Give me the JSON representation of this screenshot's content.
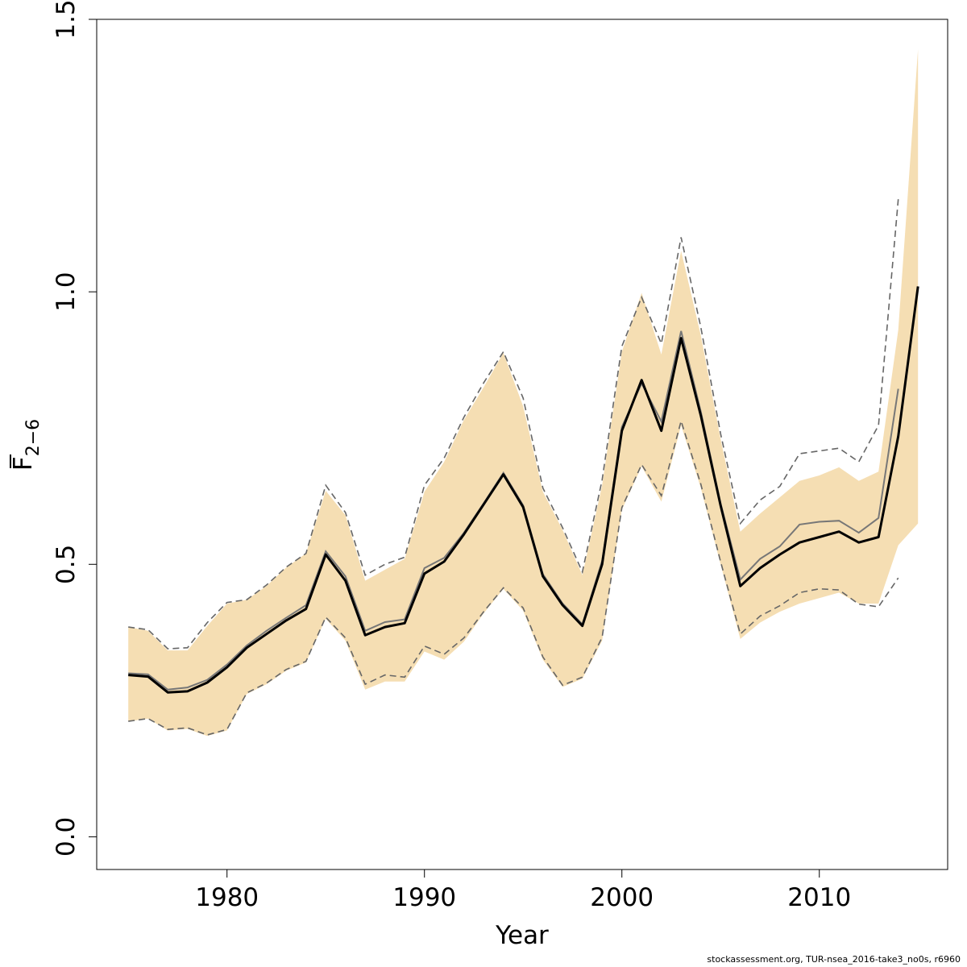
{
  "colors": {
    "band": "#f5deb3",
    "current": "#000000",
    "previous": "#777777",
    "previous_ci": "#666666",
    "frame": "#000000"
  },
  "footer": "stockassessment.org, TUR-nsea_2016-take3_no0s, r6960",
  "chart_data": {
    "type": "line",
    "title": "",
    "xlabel": "Year",
    "ylabel_main": "F",
    "ylabel_sub": "2−6",
    "xlim": [
      1973.4,
      2016.5
    ],
    "ylim": [
      -0.06,
      1.5
    ],
    "xticks": [
      1980,
      1990,
      2000,
      2010
    ],
    "yticks": [
      0.0,
      0.5,
      1.0,
      1.5
    ],
    "ytick_labels": [
      "0.0",
      "0.5",
      "1.0",
      "1.5"
    ],
    "years": [
      1975,
      1976,
      1977,
      1978,
      1979,
      1980,
      1981,
      1982,
      1983,
      1984,
      1985,
      1986,
      1987,
      1988,
      1989,
      1990,
      1991,
      1992,
      1993,
      1994,
      1995,
      1996,
      1997,
      1998,
      1999,
      2000,
      2001,
      2002,
      2003,
      2004,
      2005,
      2006,
      2007,
      2008,
      2009,
      2010,
      2011,
      2012,
      2013,
      2014,
      2015
    ],
    "series": [
      {
        "role": "confidence-band",
        "lower": [
          0.212,
          0.217,
          0.195,
          0.198,
          0.185,
          0.195,
          0.262,
          0.28,
          0.305,
          0.32,
          0.4,
          0.36,
          0.27,
          0.285,
          0.285,
          0.34,
          0.325,
          0.358,
          0.41,
          0.455,
          0.415,
          0.325,
          0.275,
          0.29,
          0.36,
          0.6,
          0.68,
          0.615,
          0.755,
          0.64,
          0.5,
          0.363,
          0.393,
          0.413,
          0.428,
          0.438,
          0.448,
          0.428,
          0.428,
          0.535,
          0.575
        ],
        "upper": [
          0.385,
          0.378,
          0.342,
          0.342,
          0.387,
          0.428,
          0.435,
          0.46,
          0.494,
          0.52,
          0.635,
          0.59,
          0.47,
          0.49,
          0.51,
          0.633,
          0.688,
          0.765,
          0.825,
          0.888,
          0.79,
          0.633,
          0.563,
          0.48,
          0.645,
          0.89,
          0.998,
          0.885,
          1.075,
          0.92,
          0.73,
          0.56,
          0.593,
          0.623,
          0.653,
          0.663,
          0.678,
          0.653,
          0.67,
          0.93,
          1.445
        ]
      },
      {
        "role": "current-estimate",
        "values": [
          0.297,
          0.294,
          0.265,
          0.267,
          0.283,
          0.311,
          0.347,
          0.372,
          0.397,
          0.418,
          0.518,
          0.47,
          0.37,
          0.385,
          0.392,
          0.483,
          0.505,
          0.555,
          0.61,
          0.665,
          0.605,
          0.478,
          0.425,
          0.387,
          0.5,
          0.745,
          0.838,
          0.745,
          0.915,
          0.773,
          0.608,
          0.46,
          0.493,
          0.518,
          0.54,
          0.55,
          0.56,
          0.54,
          0.55,
          0.735,
          1.01
        ]
      },
      {
        "role": "previous-estimate",
        "values": [
          0.3,
          0.298,
          0.27,
          0.274,
          0.288,
          0.316,
          0.351,
          0.378,
          0.402,
          0.425,
          0.524,
          0.478,
          0.378,
          0.394,
          0.399,
          0.493,
          0.512,
          0.558,
          0.612,
          0.668,
          0.608,
          0.482,
          0.428,
          0.39,
          0.506,
          0.752,
          0.832,
          0.762,
          0.928,
          0.78,
          0.612,
          0.472,
          0.51,
          0.533,
          0.573,
          0.578,
          0.58,
          0.558,
          0.585,
          0.822,
          null
        ]
      },
      {
        "role": "previous-upper",
        "values": [
          0.385,
          0.38,
          0.345,
          0.347,
          0.393,
          0.43,
          0.435,
          0.462,
          0.495,
          0.52,
          0.645,
          0.595,
          0.48,
          0.5,
          0.513,
          0.645,
          0.695,
          0.77,
          0.833,
          0.89,
          0.805,
          0.64,
          0.567,
          0.486,
          0.655,
          0.9,
          0.99,
          0.905,
          1.1,
          0.935,
          0.74,
          0.575,
          0.618,
          0.643,
          0.703,
          0.708,
          0.713,
          0.688,
          0.755,
          1.17,
          null
        ]
      },
      {
        "role": "previous-lower",
        "values": [
          0.212,
          0.217,
          0.197,
          0.2,
          0.187,
          0.197,
          0.264,
          0.282,
          0.307,
          0.322,
          0.403,
          0.365,
          0.28,
          0.297,
          0.293,
          0.35,
          0.335,
          0.365,
          0.413,
          0.457,
          0.42,
          0.33,
          0.278,
          0.293,
          0.366,
          0.604,
          0.683,
          0.626,
          0.763,
          0.647,
          0.505,
          0.372,
          0.405,
          0.424,
          0.448,
          0.455,
          0.453,
          0.427,
          0.422,
          0.475,
          null
        ]
      }
    ]
  }
}
